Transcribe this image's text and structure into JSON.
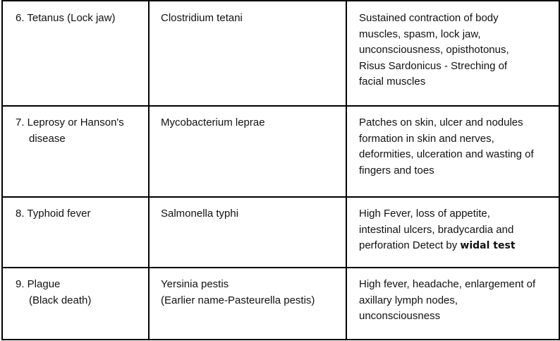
{
  "rows": [
    {
      "disease": [
        "6. Tetanus (Lock jaw)"
      ],
      "pathogen": [
        "Clostridium tetani"
      ],
      "symptoms": [
        "Sustained contraction of body",
        "muscles, spasm, lock jaw,",
        "unconsciousness, opisthotonus,",
        "Risus Sardonicus - Streching of",
        "facial muscles"
      ]
    },
    {
      "disease": [
        "7. Leprosy or Hanson's",
        "disease"
      ],
      "pathogen": [
        "Mycobacterium leprae"
      ],
      "symptoms": [
        "Patches on skin, ulcer and nodules",
        "formation in skin and nerves,",
        "deformities, ulceration and wasting of",
        "fingers and toes"
      ]
    },
    {
      "disease": [
        "8. Typhoid fever"
      ],
      "pathogen": [
        "Salmonella typhi"
      ],
      "symptoms": [
        "High Fever, loss of appetite,",
        "intestinal ulcers, bradycardia and",
        "perforation Detect by "
      ],
      "symptoms_bold": "widal test"
    },
    {
      "disease": [
        "9. Plague",
        "(Black death)"
      ],
      "pathogen": [
        "Yersinia pestis",
        "(Earlier name-Pasteurella pestis)"
      ],
      "symptoms": [
        "High fever, headache, enlargement of",
        "axillary lymph nodes,",
        "unconsciousness"
      ]
    }
  ]
}
